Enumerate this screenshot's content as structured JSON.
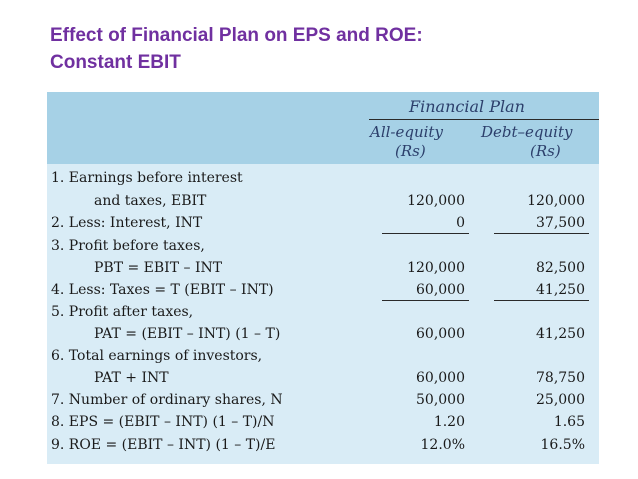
{
  "slide": {
    "title_line1": "Effect of Financial Plan on EPS and ROE:",
    "title_line2": "Constant EBIT"
  },
  "table": {
    "group_header": "Financial Plan",
    "col1_header": "All-equity",
    "col1_unit": "(Rs)",
    "col2_header": "Debt–equity",
    "col2_unit": "(Rs)",
    "rows": [
      {
        "label": "1. Earnings before interest",
        "v1": "",
        "v2": ""
      },
      {
        "label": "and taxes, EBIT",
        "v1": "120,000",
        "v2": "120,000"
      },
      {
        "label": "2. Less: Interest, INT",
        "v1": "0",
        "v2": "37,500"
      },
      {
        "label": "3. Profit before taxes,",
        "v1": "",
        "v2": ""
      },
      {
        "label": "PBT = EBIT – INT",
        "v1": "120,000",
        "v2": "82,500"
      },
      {
        "label": "4. Less: Taxes = T (EBIT – INT)",
        "v1": "60,000",
        "v2": "41,250"
      },
      {
        "label": "5. Profit after taxes,",
        "v1": "",
        "v2": ""
      },
      {
        "label": "PAT = (EBIT – INT) (1 – T)",
        "v1": "60,000",
        "v2": "41,250"
      },
      {
        "label": "6. Total earnings of investors,",
        "v1": "",
        "v2": ""
      },
      {
        "label": "PAT + INT",
        "v1": "60,000",
        "v2": "78,750"
      },
      {
        "label": "7. Number of ordinary shares, N",
        "v1": "50,000",
        "v2": "25,000"
      },
      {
        "label": "8. EPS = (EBIT – INT) (1 – T)/N",
        "v1": "1.20",
        "v2": "1.65"
      },
      {
        "label": "9. ROE = (EBIT – INT) (1 – T)/E",
        "v1": "12.0%",
        "v2": "16.5%"
      }
    ]
  },
  "colors": {
    "title": "#7030a0",
    "header_band": "#a6d1e6",
    "table_body": "#d9ecf6",
    "header_text": "#2c3f6b"
  }
}
